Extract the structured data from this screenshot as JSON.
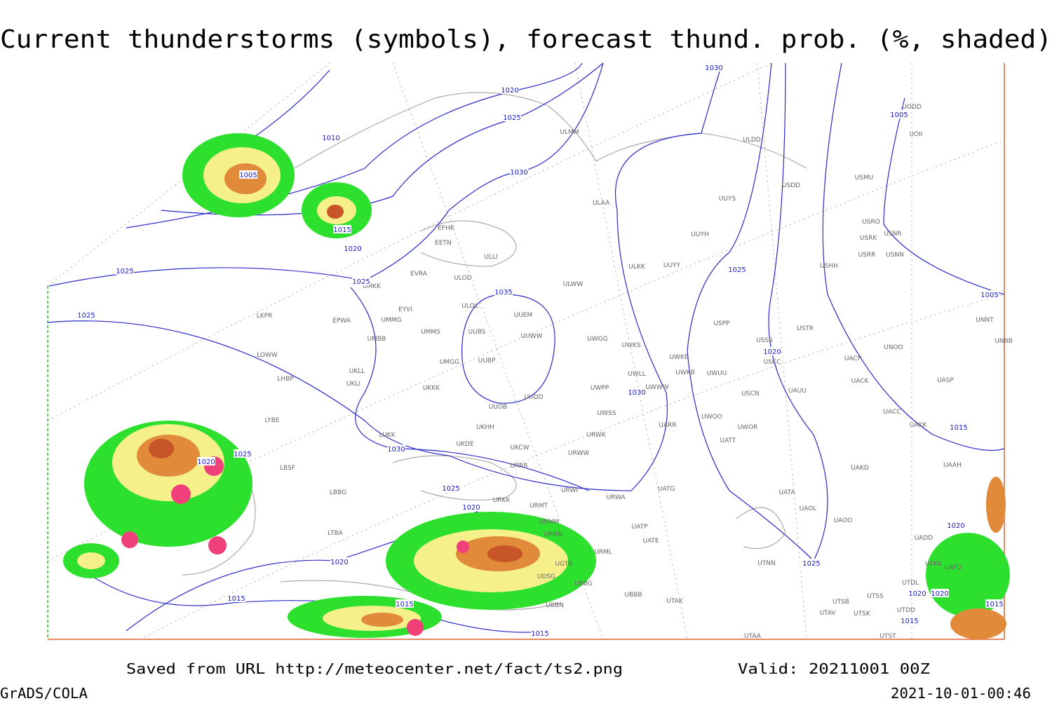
{
  "title": "Current thunderstorms (symbols), forecast thund. prob. (%, shaded)",
  "footer": {
    "source": "Saved from URL http://meteocenter.net/fact/ts2.png",
    "valid": "Valid: 20211001 00Z",
    "software": "GrADS/COLA",
    "timestamp": "2021-10-01-00:46"
  },
  "isobar_labels": [
    "1030",
    "1020",
    "1005",
    "1025",
    "1010",
    "1005",
    "1030",
    "1015",
    "1020",
    "1025",
    "1025",
    "1025",
    "1005",
    "1035",
    "1025",
    "1020",
    "1030",
    "1015",
    "1030",
    "1025",
    "1020",
    "1025",
    "1020",
    "1020",
    "1025",
    "1020",
    "1015",
    "1015",
    "1020",
    "1020",
    "1015",
    "1015",
    "1015"
  ],
  "stations": [
    "ULMM",
    "ULDD",
    "USDD",
    "USMU",
    "UOII",
    "UODD",
    "ULAA",
    "UUYS",
    "USRO",
    "USNR",
    "USRK",
    "USRR",
    "USNN",
    "UUYH",
    "EFHK",
    "EETN",
    "ULLI",
    "ULKK",
    "UUYY",
    "USHH",
    "EVRA",
    "ULOD",
    "UMKK",
    "ULWW",
    "ULOL",
    "UUEM",
    "EYVI",
    "EPWA",
    "UMMG",
    "LKPR",
    "USPP",
    "UNNT",
    "USTR",
    "UMMS",
    "UUBS",
    "UUWW",
    "UMBB",
    "UWGG",
    "UWKS",
    "USSS",
    "UNBB",
    "UNOO",
    "LOWW",
    "UWKE",
    "USCC",
    "UACP",
    "UMGG",
    "UUBP",
    "UKLL",
    "UWKB",
    "UWUU",
    "UACK",
    "UASP",
    "LHBP",
    "UKLI",
    "UWLL",
    "UWWW",
    "UWPP",
    "UKKK",
    "USCN",
    "UAUU",
    "UUDD",
    "UUOB",
    "UWSS",
    "UACC",
    "LYBE",
    "UKHH",
    "UWOO",
    "UAKK",
    "UWOR",
    "UARR",
    "LUKK",
    "UKDE",
    "UKCW",
    "URWK",
    "UATT",
    "URWW",
    "LBSF",
    "URRR",
    "UAKD",
    "UAAH",
    "LBBG",
    "URWI",
    "UATG",
    "URKK",
    "URWA",
    "UATA",
    "URMT",
    "UAOL",
    "URMM",
    "UATP",
    "UAOO",
    "URMN",
    "LTBA",
    "UATE",
    "UADD",
    "URML",
    "UTNN",
    "UTKK",
    "UAFO",
    "UGTB",
    "UDSG",
    "UBBG",
    "UTDL",
    "UBBB",
    "UTAK",
    "UTSS",
    "UTSB",
    "UBBN",
    "UTDD",
    "UTAV",
    "UTSK",
    "UTAA",
    "UTST"
  ]
}
